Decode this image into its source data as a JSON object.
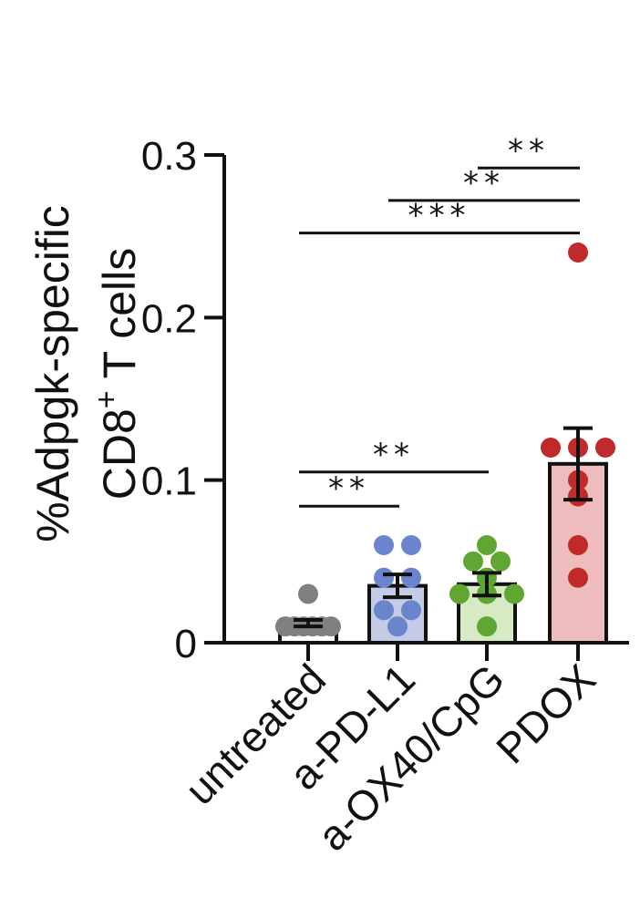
{
  "chart_data": {
    "type": "bar",
    "ylabel_line1": "%Adpgk-specific",
    "ylabel_line2": "CD8",
    "ylabel_sup": "+",
    "ylabel_line2_end": " T cells",
    "ylim": [
      0,
      0.3
    ],
    "yticks": [
      {
        "value": 0,
        "label": "0"
      },
      {
        "value": 0.1,
        "label": "0.1"
      },
      {
        "value": 0.2,
        "label": "0.2"
      },
      {
        "value": 0.3,
        "label": "0.3"
      }
    ],
    "categories": [
      "untreated",
      "a-PD-L1",
      "a-OX40/CpG",
      "PDOX"
    ],
    "values": [
      0.012,
      0.035,
      0.036,
      0.11
    ],
    "errors": [
      0.002,
      0.007,
      0.007,
      0.022
    ],
    "colors": [
      {
        "fill": "#ffffff",
        "dot": "#808080"
      },
      {
        "fill": "#c3cbe6",
        "dot": "#6a85cc"
      },
      {
        "fill": "#d6ebc4",
        "dot": "#5fa633"
      },
      {
        "fill": "#eebcbc",
        "dot": "#c02a2a"
      }
    ],
    "points": [
      [
        0.01,
        0.01,
        0.01,
        0.01,
        0.01,
        0.01,
        0.03
      ],
      [
        0.01,
        0.02,
        0.02,
        0.04,
        0.04,
        0.06,
        0.06
      ],
      [
        0.01,
        0.03,
        0.03,
        0.03,
        0.04,
        0.05,
        0.05,
        0.06
      ],
      [
        0.04,
        0.06,
        0.09,
        0.1,
        0.12,
        0.12,
        0.12,
        0.24
      ]
    ],
    "significance": [
      {
        "from": 0,
        "to": 1,
        "y": 0.084,
        "label": "**"
      },
      {
        "from": 0,
        "to": 2,
        "y": 0.105,
        "label": "**"
      },
      {
        "from": 0,
        "to": 3,
        "y": 0.252,
        "label": "***"
      },
      {
        "from": 1,
        "to": 3,
        "y": 0.272,
        "label": "**"
      },
      {
        "from": 2,
        "to": 3,
        "y": 0.292,
        "label": "**"
      }
    ]
  }
}
